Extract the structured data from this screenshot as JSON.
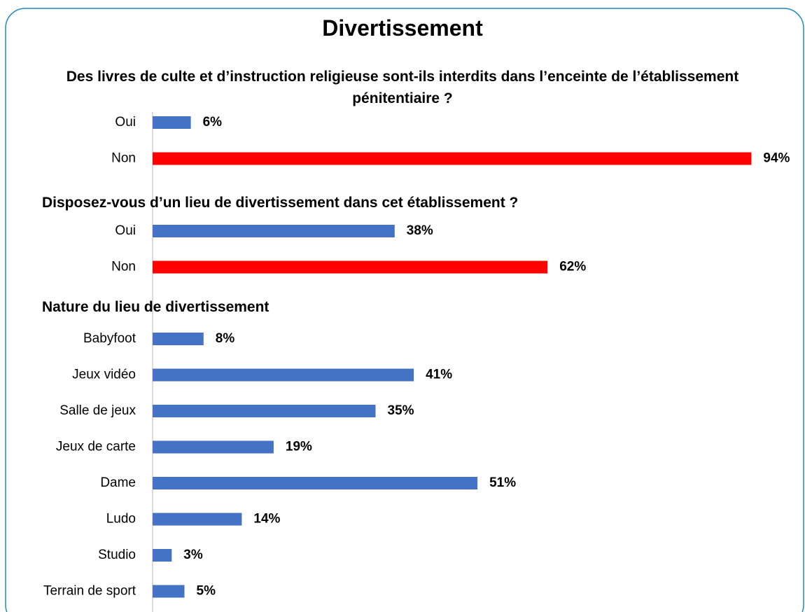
{
  "title": "Divertissement",
  "chart_data": [
    {
      "type": "bar",
      "orientation": "horizontal",
      "title": "Des livres de culte et d’instruction religieuse sont-ils interdits dans l’enceinte de l’établissement pénitentiaire ?",
      "categories": [
        "Oui",
        "Non"
      ],
      "values": [
        6,
        94
      ],
      "value_labels": [
        "6%",
        "94%"
      ],
      "colors": [
        "#4472c4",
        "#ff0000"
      ]
    },
    {
      "type": "bar",
      "orientation": "horizontal",
      "title": "Disposez-vous d’un lieu de divertissement dans cet établissement ?",
      "categories": [
        "Oui",
        "Non"
      ],
      "values": [
        38,
        62
      ],
      "value_labels": [
        "38%",
        "62%"
      ],
      "colors": [
        "#4472c4",
        "#ff0000"
      ]
    },
    {
      "type": "bar",
      "orientation": "horizontal",
      "title": "Nature du lieu de divertissement",
      "categories": [
        "Babyfoot",
        "Jeux vidéo",
        "Salle de jeux",
        "Jeux de carte",
        "Dame",
        "Ludo",
        "Studio",
        "Terrain de sport"
      ],
      "values": [
        8,
        41,
        35,
        19,
        51,
        14,
        3,
        5
      ],
      "value_labels": [
        "8%",
        "41%",
        "35%",
        "19%",
        "51%",
        "14%",
        "3%",
        "5%"
      ],
      "colors": [
        "#4472c4",
        "#4472c4",
        "#4472c4",
        "#4472c4",
        "#4472c4",
        "#4472c4",
        "#4472c4",
        "#4472c4"
      ]
    }
  ]
}
